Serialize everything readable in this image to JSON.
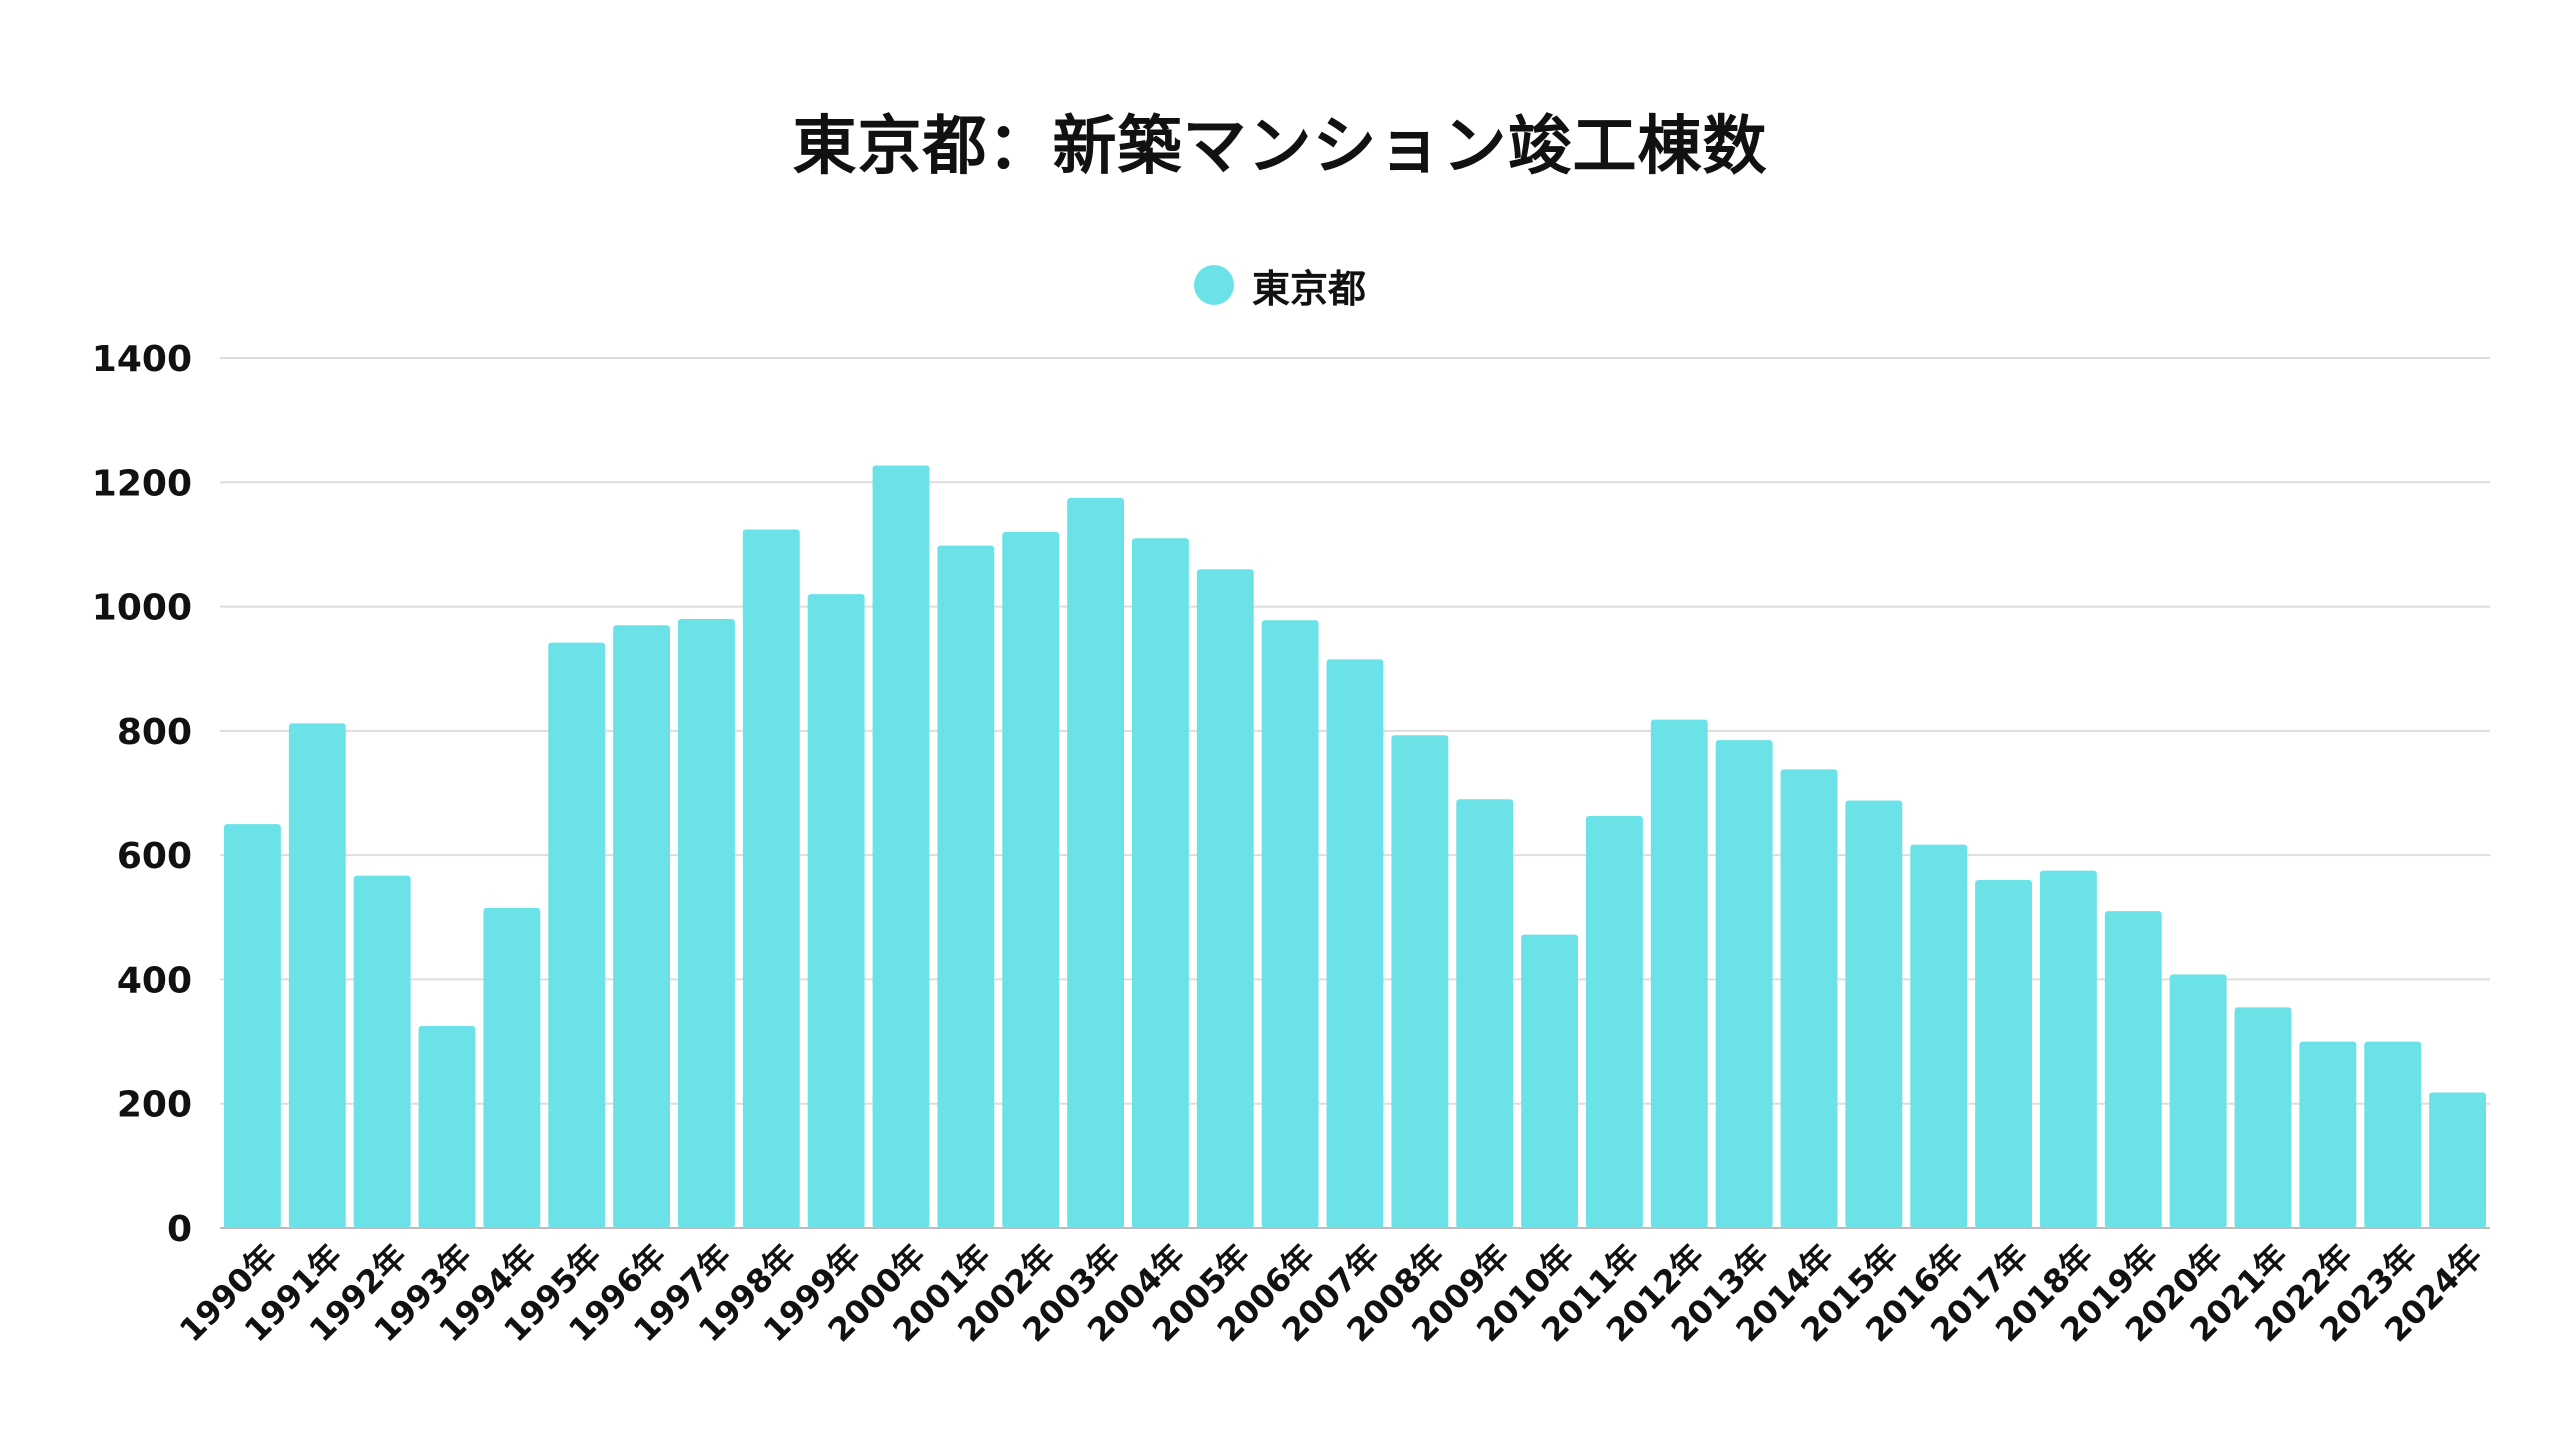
{
  "chart_data": {
    "type": "bar",
    "title": "東京都：新築マンション竣工棟数",
    "legend": [
      {
        "name": "東京都",
        "color": "#6BE2E7"
      }
    ],
    "legend_position": "top-center",
    "xlabel": "",
    "ylabel": "",
    "ylim": [
      0,
      1400
    ],
    "yticks": [
      0,
      200,
      400,
      600,
      800,
      1000,
      1200,
      1400
    ],
    "grid": true,
    "categories": [
      "1990年",
      "1991年",
      "1992年",
      "1993年",
      "1994年",
      "1995年",
      "1996年",
      "1997年",
      "1998年",
      "1999年",
      "2000年",
      "2001年",
      "2002年",
      "2003年",
      "2004年",
      "2005年",
      "2006年",
      "2007年",
      "2008年",
      "2009年",
      "2010年",
      "2011年",
      "2012年",
      "2013年",
      "2014年",
      "2015年",
      "2016年",
      "2017年",
      "2018年",
      "2019年",
      "2020年",
      "2021年",
      "2022年",
      "2023年",
      "2024年"
    ],
    "series": [
      {
        "name": "東京都",
        "values": [
          650,
          812,
          567,
          325,
          515,
          942,
          970,
          980,
          1124,
          1020,
          1227,
          1098,
          1120,
          1175,
          1110,
          1060,
          978,
          915,
          793,
          690,
          472,
          663,
          818,
          785,
          738,
          688,
          617,
          560,
          575,
          510,
          408,
          355,
          300,
          300,
          218
        ]
      }
    ]
  }
}
